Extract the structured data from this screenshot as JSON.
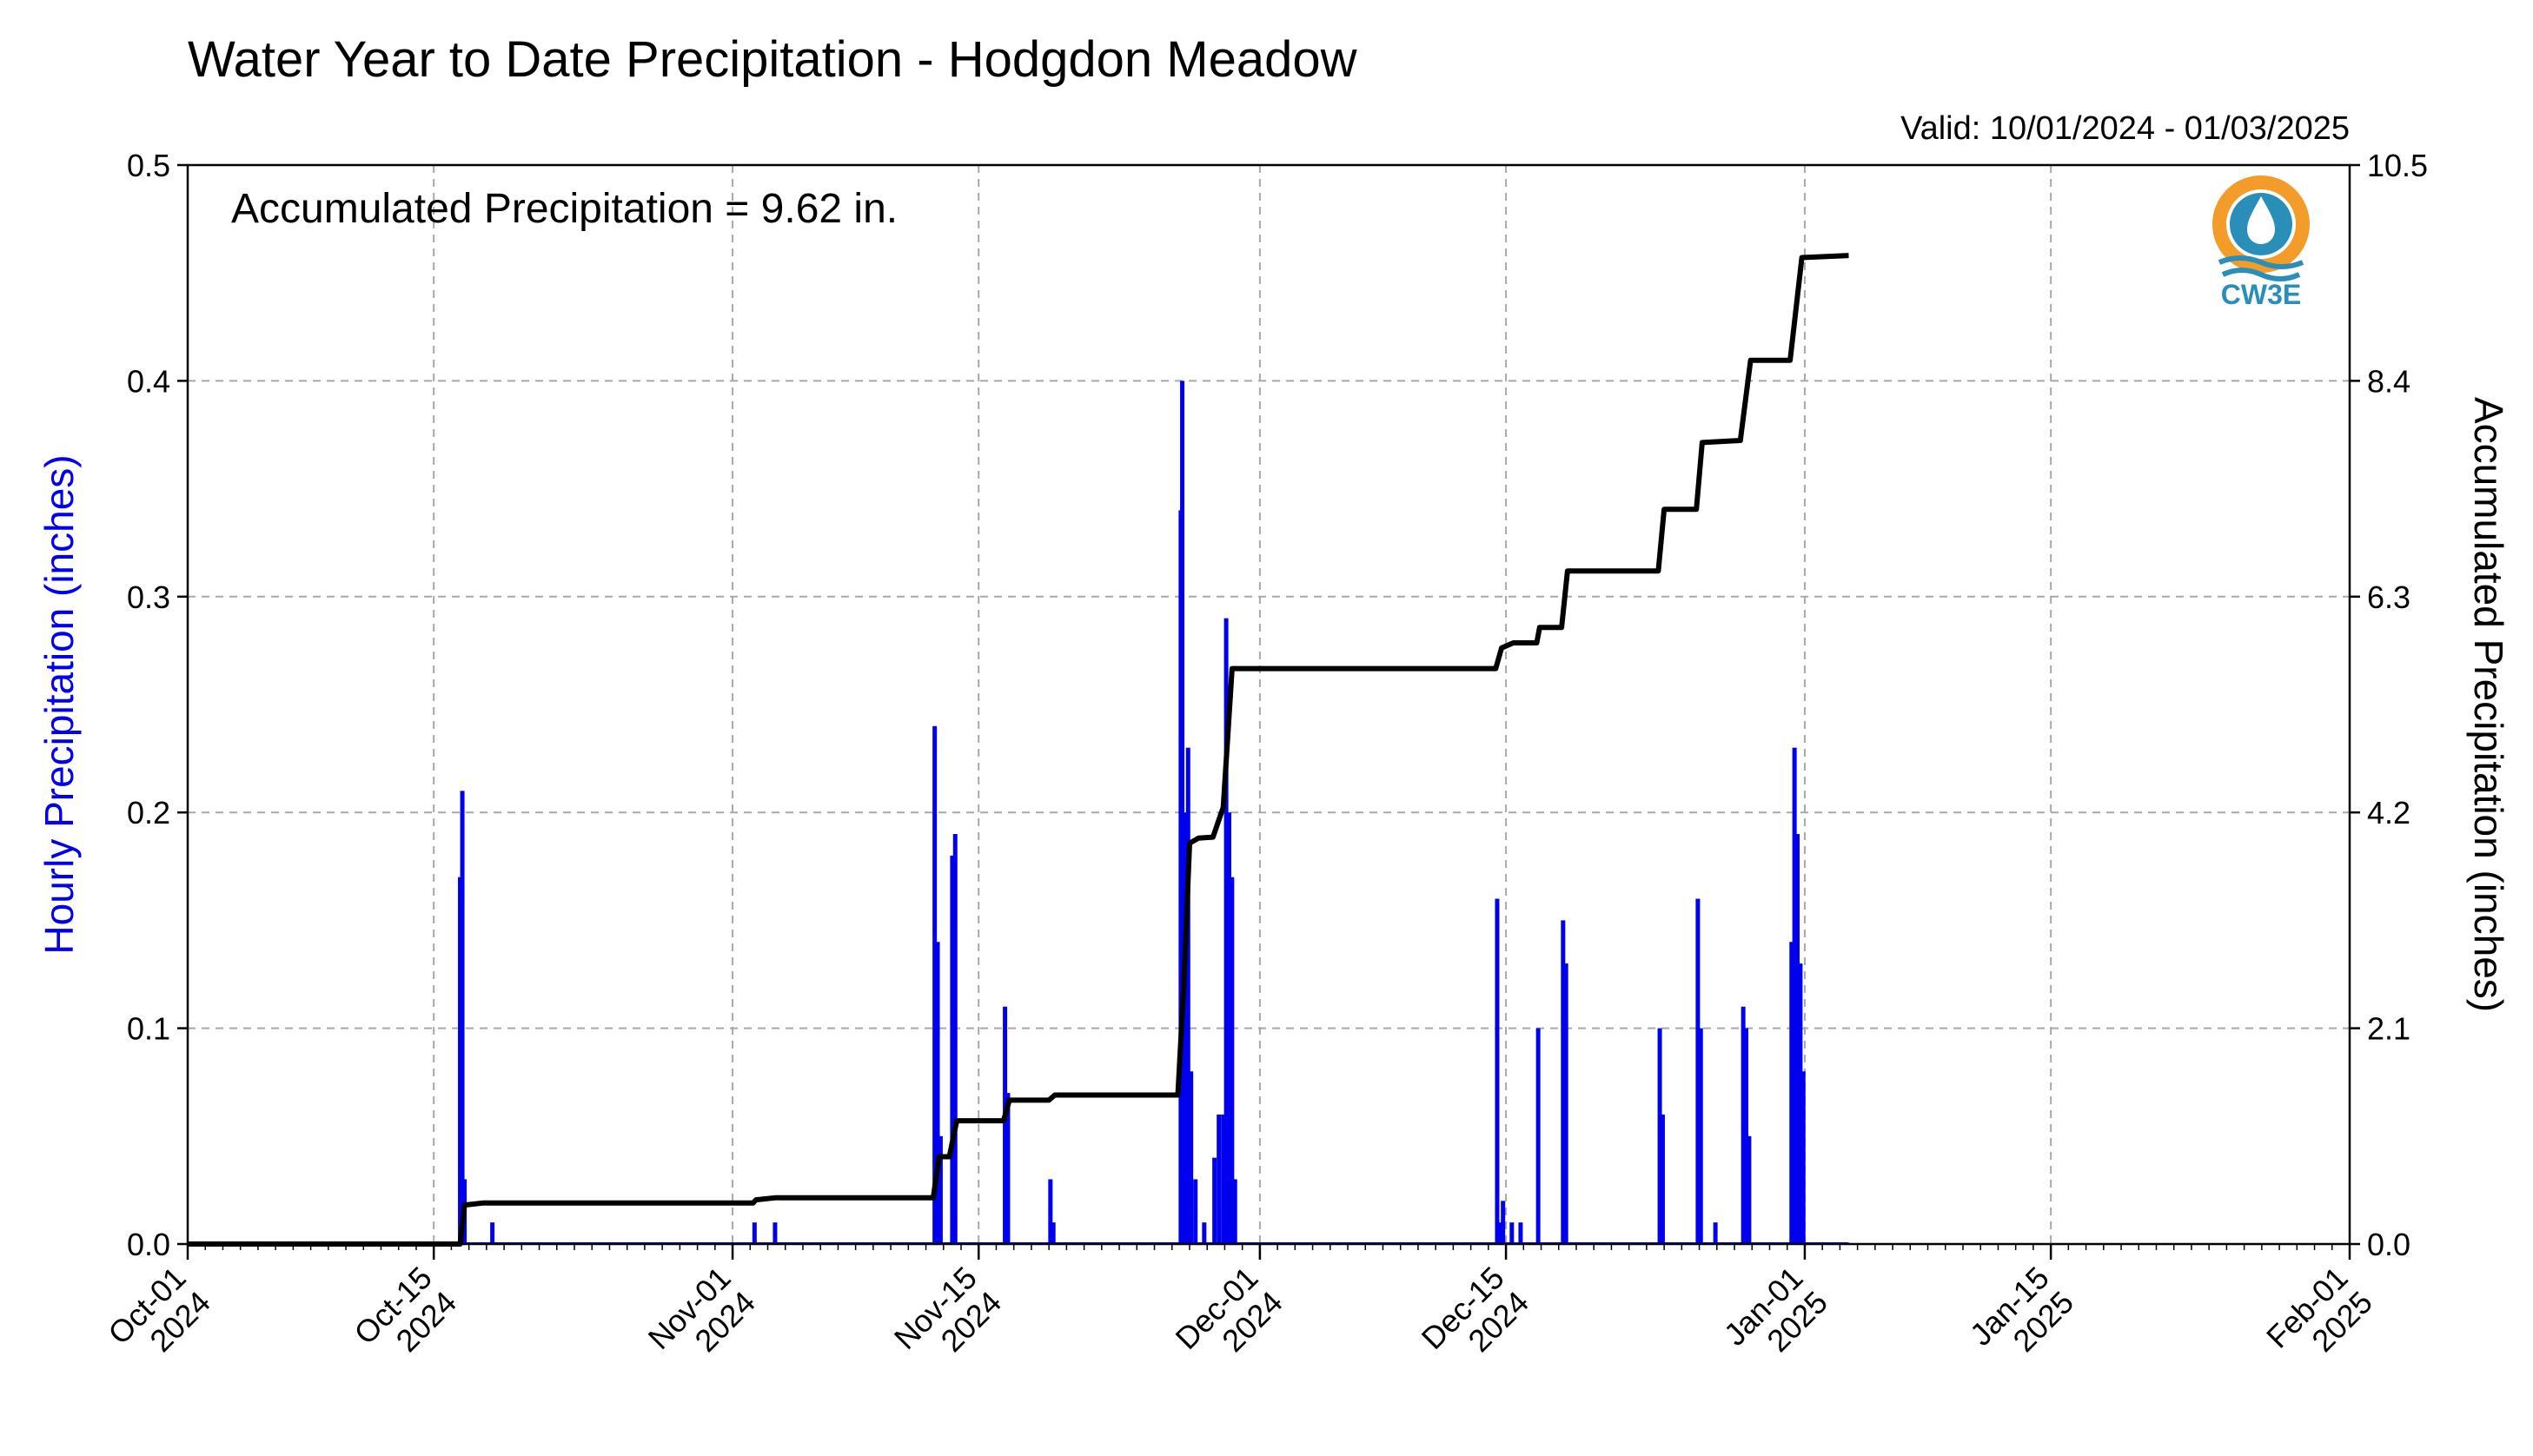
{
  "colors": {
    "hourly": "#0000ee",
    "accumulated": "#000000",
    "grid": "#a8a8a8",
    "logo_teal": "#2a8fb8",
    "logo_orange": "#f39c2a"
  },
  "header": {
    "title": "Water Year to Date Precipitation - Hodgdon Meadow",
    "valid": "Valid: 10/01/2024 - 01/03/2025"
  },
  "annotation": "Accumulated Precipitation = 9.62 in.",
  "logo": {
    "text": "CW3E",
    "icon": "cw3e-logo-icon"
  },
  "chart_data": {
    "type": "bar+line",
    "title": "Water Year to Date Precipitation - Hodgdon Meadow",
    "x_range": [
      "2024-10-01",
      "2025-02-01"
    ],
    "x_ticks": [
      {
        "date": "2024-10-01",
        "line1": "Oct-01",
        "line2": "2024"
      },
      {
        "date": "2024-10-15",
        "line1": "Oct-15",
        "line2": "2024"
      },
      {
        "date": "2024-11-01",
        "line1": "Nov-01",
        "line2": "2024"
      },
      {
        "date": "2024-11-15",
        "line1": "Nov-15",
        "line2": "2024"
      },
      {
        "date": "2024-12-01",
        "line1": "Dec-01",
        "line2": "2024"
      },
      {
        "date": "2024-12-15",
        "line1": "Dec-15",
        "line2": "2024"
      },
      {
        "date": "2025-01-01",
        "line1": "Jan-01",
        "line2": "2025"
      },
      {
        "date": "2025-01-15",
        "line1": "Jan-15",
        "line2": "2025"
      },
      {
        "date": "2025-02-01",
        "line1": "Feb-01",
        "line2": "2025"
      }
    ],
    "y_left": {
      "label": "Hourly Precipitation (inches)",
      "lim": [
        0,
        0.5
      ],
      "ticks": [
        "0.0",
        "0.1",
        "0.2",
        "0.3",
        "0.4",
        "0.5"
      ]
    },
    "y_right": {
      "label": "Accumulated Precipitation (inches)",
      "lim": [
        0,
        10.5
      ],
      "ticks": [
        "0.0",
        "2.1",
        "4.2",
        "6.3",
        "8.4",
        "10.5"
      ]
    },
    "grid": true,
    "hourly_series": {
      "name": "Hourly Precipitation",
      "points": [
        [
          "2024-10-16 12:00",
          0.17
        ],
        [
          "2024-10-16 15:00",
          0.21
        ],
        [
          "2024-10-16 18:00",
          0.03
        ],
        [
          "2024-10-18 08:00",
          0.01
        ],
        [
          "2024-11-02 06:00",
          0.01
        ],
        [
          "2024-11-03 10:00",
          0.01
        ],
        [
          "2024-11-12 12:00",
          0.24
        ],
        [
          "2024-11-12 16:00",
          0.14
        ],
        [
          "2024-11-12 20:00",
          0.05
        ],
        [
          "2024-11-13 12:00",
          0.18
        ],
        [
          "2024-11-13 16:00",
          0.19
        ],
        [
          "2024-11-16 12:00",
          0.11
        ],
        [
          "2024-11-16 16:00",
          0.07
        ],
        [
          "2024-11-19 02:00",
          0.03
        ],
        [
          "2024-11-19 06:00",
          0.01
        ],
        [
          "2024-11-26 12:00",
          0.34
        ],
        [
          "2024-11-26 14:00",
          0.4
        ],
        [
          "2024-11-26 18:00",
          0.2
        ],
        [
          "2024-11-26 22:00",
          0.23
        ],
        [
          "2024-11-27 02:00",
          0.08
        ],
        [
          "2024-11-27 08:00",
          0.03
        ],
        [
          "2024-11-27 20:00",
          0.01
        ],
        [
          "2024-11-28 10:00",
          0.04
        ],
        [
          "2024-11-28 16:00",
          0.06
        ],
        [
          "2024-11-28 22:00",
          0.06
        ],
        [
          "2024-11-29 02:00",
          0.29
        ],
        [
          "2024-11-29 06:00",
          0.2
        ],
        [
          "2024-11-29 10:00",
          0.17
        ],
        [
          "2024-11-29 14:00",
          0.03
        ],
        [
          "2024-12-14 12:00",
          0.16
        ],
        [
          "2024-12-14 16:00",
          0.01
        ],
        [
          "2024-12-14 20:00",
          0.02
        ],
        [
          "2024-12-15 08:00",
          0.01
        ],
        [
          "2024-12-15 20:00",
          0.01
        ],
        [
          "2024-12-16 20:00",
          0.1
        ],
        [
          "2024-12-18 06:00",
          0.15
        ],
        [
          "2024-12-18 10:00",
          0.13
        ],
        [
          "2024-12-23 18:00",
          0.1
        ],
        [
          "2024-12-23 22:00",
          0.06
        ],
        [
          "2024-12-25 22:00",
          0.16
        ],
        [
          "2024-12-26 02:00",
          0.1
        ],
        [
          "2024-12-26 22:00",
          0.01
        ],
        [
          "2024-12-28 12:00",
          0.11
        ],
        [
          "2024-12-28 16:00",
          0.1
        ],
        [
          "2024-12-28 20:00",
          0.05
        ],
        [
          "2024-12-31 06:00",
          0.14
        ],
        [
          "2024-12-31 10:00",
          0.23
        ],
        [
          "2024-12-31 14:00",
          0.19
        ],
        [
          "2024-12-31 18:00",
          0.13
        ],
        [
          "2024-12-31 22:00",
          0.08
        ]
      ]
    },
    "accumulated_series": {
      "name": "Accumulated Precipitation",
      "points": [
        [
          "2024-10-01 00:00",
          0.0
        ],
        [
          "2024-10-16 12:00",
          0.0
        ],
        [
          "2024-10-16 18:00",
          0.38
        ],
        [
          "2024-10-17 20:00",
          0.4
        ],
        [
          "2024-11-02 04:00",
          0.4
        ],
        [
          "2024-11-02 08:00",
          0.43
        ],
        [
          "2024-11-03 10:00",
          0.45
        ],
        [
          "2024-11-12 10:00",
          0.45
        ],
        [
          "2024-11-12 18:00",
          0.85
        ],
        [
          "2024-11-13 08:00",
          0.85
        ],
        [
          "2024-11-13 18:00",
          1.2
        ],
        [
          "2024-11-16 10:00",
          1.2
        ],
        [
          "2024-11-16 18:00",
          1.4
        ],
        [
          "2024-11-19 00:00",
          1.4
        ],
        [
          "2024-11-19 08:00",
          1.45
        ],
        [
          "2024-11-26 08:00",
          1.45
        ],
        [
          "2024-11-26 16:00",
          2.5
        ],
        [
          "2024-11-27 00:00",
          3.9
        ],
        [
          "2024-11-27 12:00",
          3.95
        ],
        [
          "2024-11-28 08:00",
          3.96
        ],
        [
          "2024-11-28 22:00",
          4.25
        ],
        [
          "2024-11-29 10:00",
          5.6
        ],
        [
          "2024-12-14 10:00",
          5.6
        ],
        [
          "2024-12-14 18:00",
          5.8
        ],
        [
          "2024-12-15 10:00",
          5.85
        ],
        [
          "2024-12-16 18:00",
          5.85
        ],
        [
          "2024-12-16 22:00",
          6.0
        ],
        [
          "2024-12-18 04:00",
          6.0
        ],
        [
          "2024-12-18 12:00",
          6.55
        ],
        [
          "2024-12-23 16:00",
          6.55
        ],
        [
          "2024-12-24 00:00",
          7.15
        ],
        [
          "2024-12-25 20:00",
          7.15
        ],
        [
          "2024-12-26 04:00",
          7.8
        ],
        [
          "2024-12-28 08:00",
          7.82
        ],
        [
          "2024-12-28 22:00",
          8.6
        ],
        [
          "2024-12-31 04:00",
          8.6
        ],
        [
          "2024-12-31 20:00",
          9.6
        ],
        [
          "2025-01-03 12:00",
          9.62
        ]
      ]
    }
  }
}
